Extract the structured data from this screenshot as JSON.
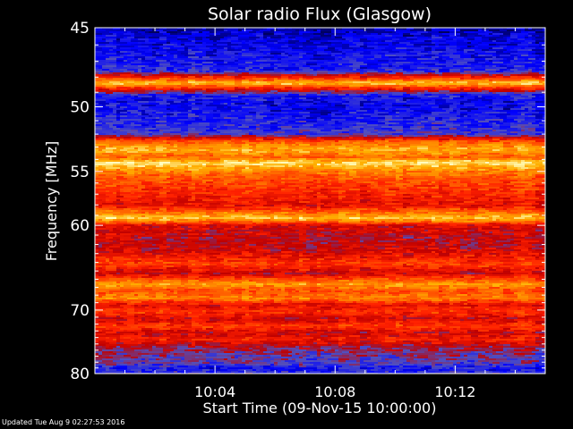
{
  "chart_data": {
    "type": "heatmap",
    "title": "Solar radio Flux (Glasgow)",
    "xlabel": "Start Time (09-Nov-15 10:00:00)",
    "ylabel": "Frequency [MHz]",
    "x_ticks": [
      "10:04",
      "10:08",
      "10:12"
    ],
    "y_ticks": [
      45,
      50,
      55,
      60,
      70,
      80
    ],
    "x_range_minutes": [
      0,
      15
    ],
    "y_range_mhz": [
      45,
      80
    ],
    "colormap": [
      "#000060",
      "#0000ff",
      "#5050c0",
      "#c00000",
      "#ff2000",
      "#ff6a00",
      "#ffb000",
      "#ffffc0"
    ],
    "bands": [
      {
        "mhz": 45.0,
        "level": 0.05
      },
      {
        "mhz": 45.5,
        "level": 0.12
      },
      {
        "mhz": 46.5,
        "level": 0.15
      },
      {
        "mhz": 47.6,
        "level": 0.2
      },
      {
        "mhz": 48.0,
        "level": 0.55
      },
      {
        "mhz": 48.4,
        "level": 0.9
      },
      {
        "mhz": 48.7,
        "level": 0.6
      },
      {
        "mhz": 49.2,
        "level": 0.18
      },
      {
        "mhz": 50.0,
        "level": 0.14
      },
      {
        "mhz": 51.0,
        "level": 0.2
      },
      {
        "mhz": 52.0,
        "level": 0.25
      },
      {
        "mhz": 52.6,
        "level": 0.7
      },
      {
        "mhz": 53.2,
        "level": 0.85
      },
      {
        "mhz": 53.8,
        "level": 0.7
      },
      {
        "mhz": 54.3,
        "level": 0.95
      },
      {
        "mhz": 55.0,
        "level": 0.75
      },
      {
        "mhz": 55.8,
        "level": 0.65
      },
      {
        "mhz": 56.8,
        "level": 0.58
      },
      {
        "mhz": 58.0,
        "level": 0.5
      },
      {
        "mhz": 59.3,
        "level": 0.9
      },
      {
        "mhz": 60.0,
        "level": 0.48
      },
      {
        "mhz": 61.5,
        "level": 0.42
      },
      {
        "mhz": 62.5,
        "level": 0.45
      },
      {
        "mhz": 64.2,
        "level": 0.62
      },
      {
        "mhz": 65.3,
        "level": 0.45
      },
      {
        "mhz": 66.6,
        "level": 0.8
      },
      {
        "mhz": 67.5,
        "level": 0.65
      },
      {
        "mhz": 68.4,
        "level": 0.75
      },
      {
        "mhz": 69.3,
        "level": 0.5
      },
      {
        "mhz": 70.3,
        "level": 0.6
      },
      {
        "mhz": 71.2,
        "level": 0.45
      },
      {
        "mhz": 72.3,
        "level": 0.62
      },
      {
        "mhz": 73.3,
        "level": 0.45
      },
      {
        "mhz": 74.3,
        "level": 0.55
      },
      {
        "mhz": 75.5,
        "level": 0.38
      },
      {
        "mhz": 77.0,
        "level": 0.32
      },
      {
        "mhz": 78.3,
        "level": 0.28
      },
      {
        "mhz": 79.1,
        "level": 0.15
      },
      {
        "mhz": 80.0,
        "level": 0.25
      }
    ]
  },
  "footer": {
    "updated": "Updated Tue Aug  9 02:27:53 2016"
  }
}
